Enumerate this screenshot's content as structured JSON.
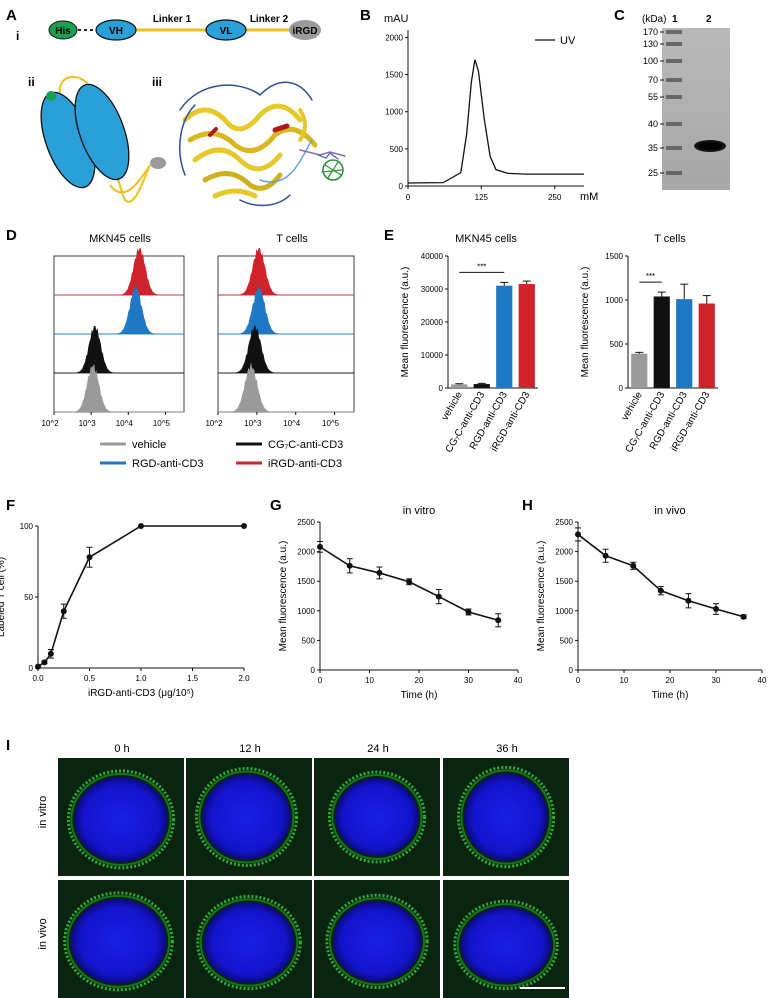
{
  "panel_letters": {
    "A": "A",
    "B": "B",
    "C": "C",
    "D": "D",
    "E": "E",
    "F": "F",
    "G": "G",
    "H": "H",
    "I": "I"
  },
  "panel_a": {
    "roman": [
      "i",
      "ii",
      "iii"
    ],
    "segments": {
      "his": "His",
      "vh": "VH",
      "vl": "VL",
      "irgd": "iRGD"
    },
    "linkers": [
      "Linker 1",
      "Linker 2"
    ],
    "colors": {
      "his": "#1aa050",
      "domain": "#2a9fd8",
      "linker": "#f0c020",
      "irgd": "#9a9a9a"
    }
  },
  "panel_b": {
    "ylabel": "mAU",
    "xlabel": "mM",
    "legend": "UV"
  },
  "panel_c": {
    "unit": "(kDa)",
    "lanes": [
      "1",
      "2"
    ],
    "markers": [
      "170",
      "130",
      "100",
      "70",
      "55",
      "40",
      "35",
      "25"
    ]
  },
  "panel_d": {
    "titles": [
      "MKN45 cells",
      "T cells"
    ]
  },
  "panel_e": {
    "titles": [
      "MKN45 cells",
      "T cells"
    ],
    "sig": "***"
  },
  "legend_de": [
    "vehicle",
    "CG₇C-anti-CD3",
    "RGD-anti-CD3",
    "iRGD-anti-CD3"
  ],
  "panel_i": {
    "cols": [
      "0 h",
      "12 h",
      "24 h",
      "36 h"
    ],
    "rows": [
      "in vitro",
      "in vivo"
    ]
  },
  "colors": {
    "vehicle": "#9a9a9a",
    "cg7c": "#111111",
    "rgd": "#1f78c4",
    "irgd": "#d0222b"
  },
  "chart_data": [
    {
      "id": "B",
      "type": "line",
      "ylabel": "mAU",
      "xlabel": "mM",
      "legend": [
        "UV"
      ],
      "xticks": [
        0,
        125,
        250
      ],
      "yticks": [
        0,
        500,
        1000,
        1500,
        2000
      ],
      "xlim": [
        0,
        300
      ],
      "ylim": [
        0,
        2100
      ],
      "series": [
        {
          "name": "UV",
          "x": [
            0,
            60,
            90,
            100,
            108,
            114,
            120,
            130,
            140,
            150,
            170,
            200,
            250,
            300
          ],
          "y": [
            40,
            45,
            180,
            700,
            1400,
            1700,
            1550,
            900,
            400,
            220,
            170,
            160,
            160,
            160
          ]
        }
      ]
    },
    {
      "id": "D1",
      "type": "area",
      "title": "MKN45 cells",
      "log_x": true,
      "xticks": [
        "10^2",
        "10^3",
        "10^4",
        "10^5"
      ],
      "xlim": [
        2,
        5.5
      ],
      "series": [
        {
          "name": "vehicle",
          "peak": 3.05
        },
        {
          "name": "CG₇C-anti-CD3",
          "peak": 3.1
        },
        {
          "name": "RGD-anti-CD3",
          "peak": 4.2
        },
        {
          "name": "iRGD-anti-CD3",
          "peak": 4.3
        }
      ]
    },
    {
      "id": "D2",
      "type": "area",
      "title": "T cells",
      "log_x": true,
      "xticks": [
        "10^2",
        "10^3",
        "10^4",
        "10^5"
      ],
      "xlim": [
        2,
        5.5
      ],
      "series": [
        {
          "name": "vehicle",
          "peak": 2.85
        },
        {
          "name": "CG₇C-anti-CD3",
          "peak": 2.95
        },
        {
          "name": "RGD-anti-CD3",
          "peak": 3.05
        },
        {
          "name": "iRGD-anti-CD3",
          "peak": 3.05
        }
      ]
    },
    {
      "id": "E1",
      "type": "bar",
      "title": "MKN45 cells",
      "ylabel": "Mean fluorescence (a.u.)",
      "categories": [
        "vehicle",
        "CG₇C-anti-CD3",
        "RGD-anti-CD3",
        "iRGD-anti-CD3"
      ],
      "values": [
        1100,
        1200,
        31000,
        31500
      ],
      "errors": [
        200,
        200,
        1000,
        900
      ],
      "ylim": [
        0,
        40000
      ],
      "yticks": [
        0,
        10000,
        20000,
        30000,
        40000
      ],
      "sig": {
        "from": 0,
        "to": 2,
        "label": "***"
      }
    },
    {
      "id": "E2",
      "type": "bar",
      "title": "T cells",
      "ylabel": "Mean fluorescence (a.u.)",
      "categories": [
        "vehicle",
        "CG₇C-anti-CD3",
        "RGD-anti-CD3",
        "iRGD-anti-CD3"
      ],
      "values": [
        390,
        1040,
        1010,
        960
      ],
      "errors": [
        15,
        50,
        170,
        90
      ],
      "ylim": [
        0,
        1500
      ],
      "yticks": [
        0,
        500,
        1000,
        1500
      ],
      "sig": {
        "from": 0,
        "to": 1,
        "label": "***"
      }
    },
    {
      "id": "F",
      "type": "line",
      "xlabel": "iRGD-anti-CD3 (μg/10⁵)",
      "ylabel": "Labeled T cell (%)",
      "xlim": [
        0,
        2.0
      ],
      "ylim": [
        0,
        100
      ],
      "xticks": [
        0.0,
        0.5,
        1.0,
        1.5,
        2.0
      ],
      "xticklabels": [
        "0.0",
        "0.5",
        "1.0",
        "1.5",
        "2.0"
      ],
      "yticks": [
        0,
        50,
        100
      ],
      "series": [
        {
          "name": "",
          "x": [
            0,
            0.0625,
            0.125,
            0.25,
            0.5,
            1.0,
            2.0
          ],
          "y": [
            1,
            4,
            10,
            40,
            78,
            100,
            100
          ],
          "err": [
            0,
            1,
            3,
            5,
            7,
            0,
            0
          ]
        }
      ]
    },
    {
      "id": "G",
      "type": "line",
      "title": "in vitro",
      "xlabel": "Time (h)",
      "ylabel": "Mean fluorescence (a.u.)",
      "xlim": [
        0,
        40
      ],
      "ylim": [
        0,
        2500
      ],
      "xticks": [
        0,
        10,
        20,
        30,
        40
      ],
      "yticks": [
        0,
        500,
        1000,
        1500,
        2000,
        2500
      ],
      "series": [
        {
          "name": "",
          "x": [
            0,
            6,
            12,
            18,
            24,
            30,
            36
          ],
          "y": [
            2080,
            1760,
            1640,
            1490,
            1240,
            980,
            840
          ],
          "err": [
            90,
            120,
            100,
            50,
            120,
            50,
            110
          ]
        }
      ]
    },
    {
      "id": "H",
      "type": "line",
      "title": "in vivo",
      "xlabel": "Time (h)",
      "ylabel": "Mean fluorescence (a.u.)",
      "xlim": [
        0,
        40
      ],
      "ylim": [
        0,
        2500
      ],
      "xticks": [
        0,
        10,
        20,
        30,
        40
      ],
      "yticks": [
        0,
        500,
        1000,
        1500,
        2000,
        2500
      ],
      "series": [
        {
          "name": "",
          "x": [
            0,
            6,
            12,
            18,
            24,
            30,
            36
          ],
          "y": [
            2290,
            1930,
            1760,
            1340,
            1170,
            1030,
            900
          ],
          "err": [
            110,
            110,
            60,
            70,
            120,
            90,
            30
          ]
        }
      ]
    }
  ]
}
